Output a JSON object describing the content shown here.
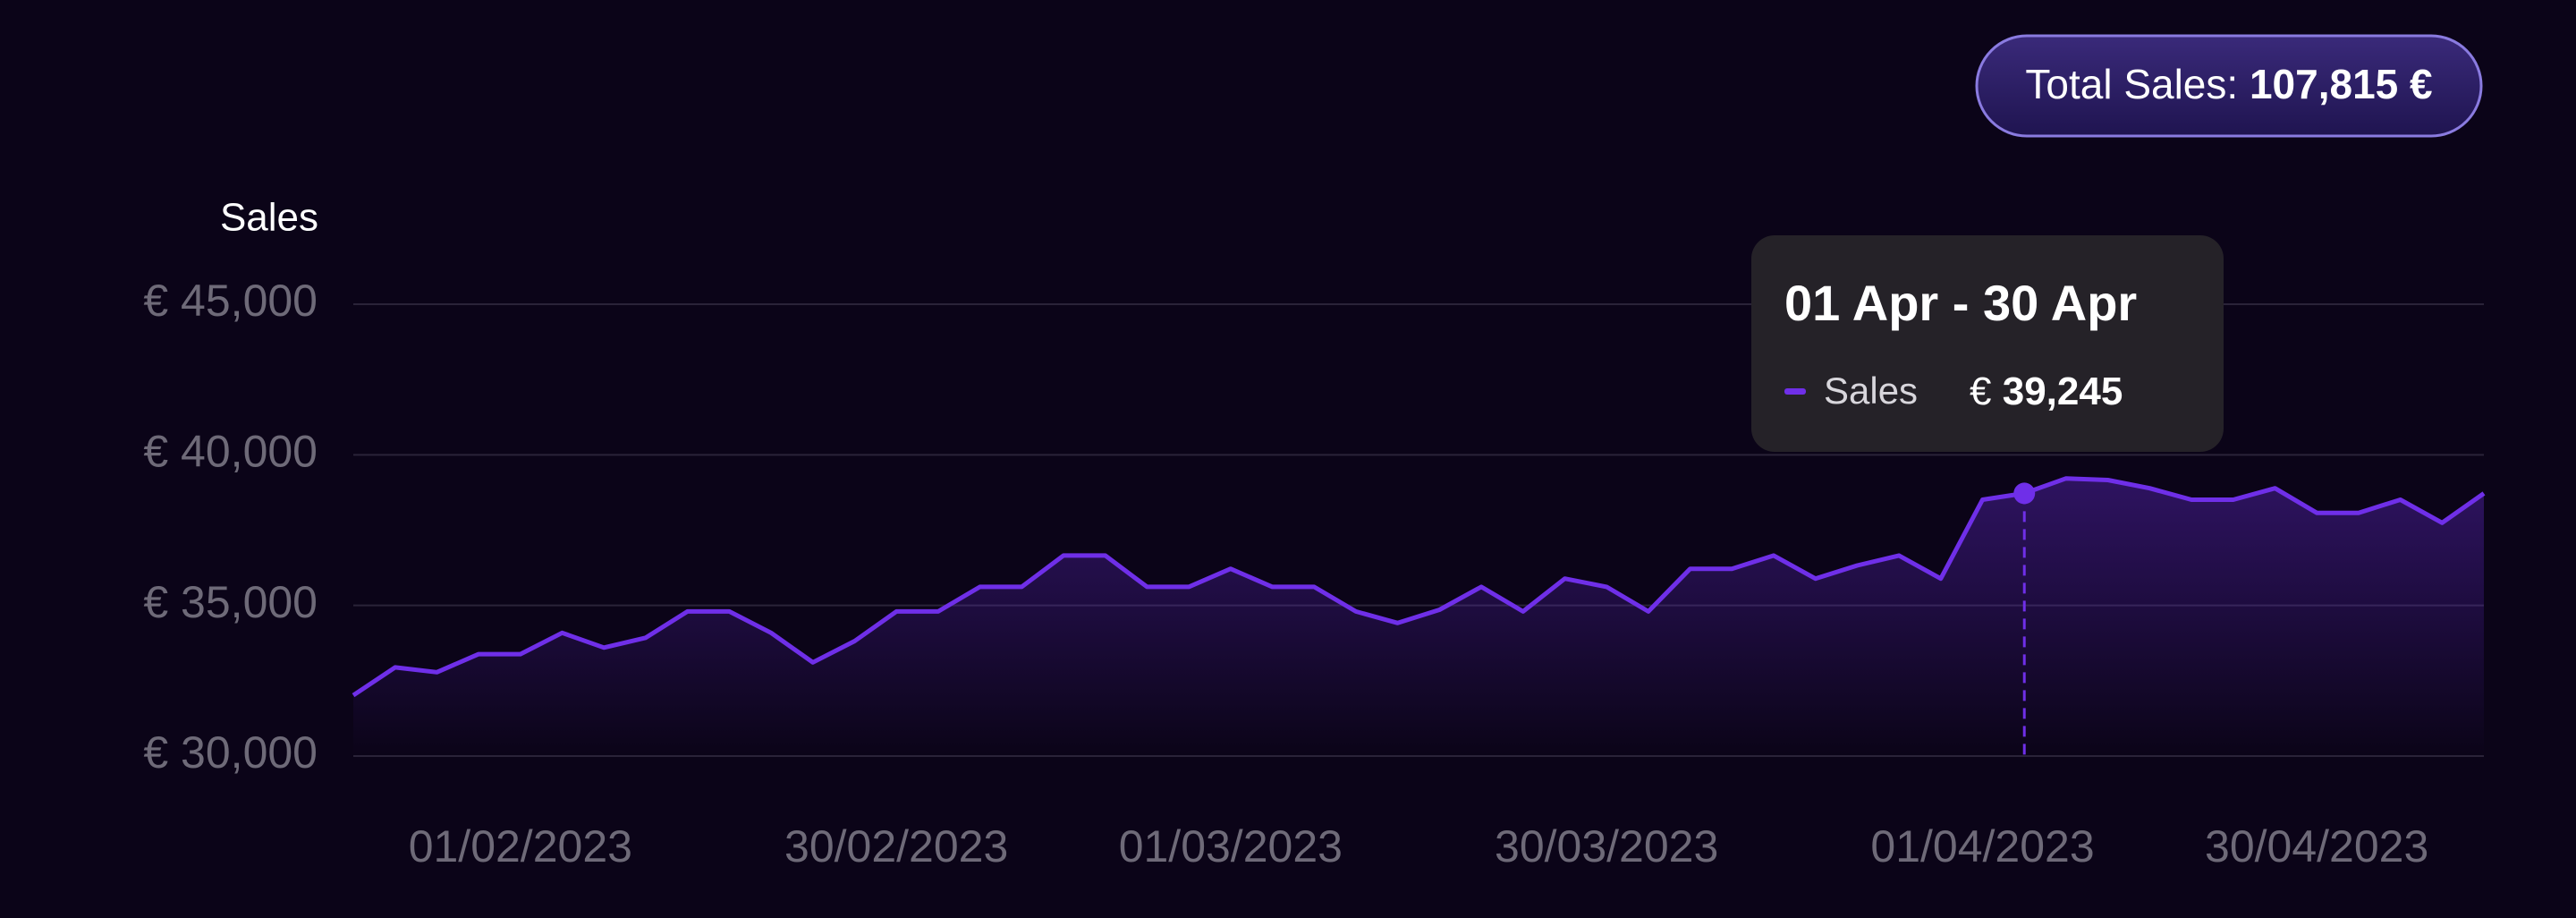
{
  "chart_data": {
    "type": "line",
    "y_axis_title": "Sales",
    "categories": [
      null,
      null,
      null,
      null,
      "01/02/2023",
      null,
      null,
      null,
      null,
      null,
      null,
      null,
      null,
      "30/02/2023",
      null,
      null,
      null,
      null,
      null,
      null,
      null,
      "01/03/2023",
      null,
      null,
      null,
      null,
      null,
      null,
      null,
      null,
      "30/03/2023",
      null,
      null,
      null,
      null,
      null,
      null,
      null,
      null,
      "01/04/2023",
      null,
      null,
      null,
      null,
      null,
      null,
      null,
      "30/04/2023",
      null,
      null,
      null,
      null
    ],
    "series": [
      {
        "name": "Sales",
        "color": "#6f2fe8",
        "values": [
          32018,
          32945,
          32782,
          33382,
          33382,
          34091,
          33600,
          33927,
          34800,
          34800,
          34091,
          33109,
          33818,
          34800,
          34800,
          35618,
          35618,
          36655,
          36655,
          35618,
          35618,
          36218,
          35618,
          35618,
          34800,
          34418,
          34855,
          35618,
          34800,
          35891,
          35618,
          34800,
          36218,
          36218,
          36655,
          35891,
          36327,
          36655,
          35891,
          38509,
          38720,
          39218,
          39163,
          38890,
          38509,
          38509,
          38890,
          38073,
          38073,
          38509,
          37745,
          38720
        ]
      }
    ],
    "ylim": [
      30000,
      45000
    ],
    "yticks": [
      {
        "value": 30000,
        "label": "€ 30,000"
      },
      {
        "value": 35000,
        "label": "€ 35,000"
      },
      {
        "value": 40000,
        "label": "€ 40,000"
      },
      {
        "value": 45000,
        "label": "€ 45,000"
      }
    ],
    "grid": true
  },
  "badge": {
    "label": "Total Sales:",
    "value": "107,815 €"
  },
  "tooltip": {
    "title": "01 Apr - 30 Apr",
    "series": "Sales",
    "currency": "€",
    "value": "39,245"
  }
}
